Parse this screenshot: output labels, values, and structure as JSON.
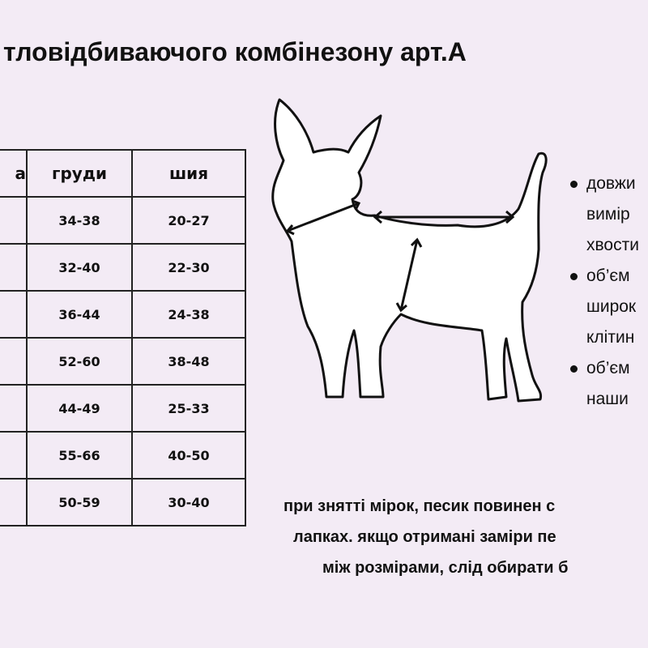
{
  "title": "тловідбиваючого комбінезону арт.А",
  "table": {
    "headers": [
      "а",
      "груди",
      "шия"
    ],
    "rows": [
      [
        "",
        "34-38",
        "20-27"
      ],
      [
        "",
        "32-40",
        "22-30"
      ],
      [
        "",
        "36-44",
        "24-38"
      ],
      [
        "",
        "52-60",
        "38-48"
      ],
      [
        "",
        "44-49",
        "25-33"
      ],
      [
        "",
        "55-66",
        "40-50"
      ],
      [
        "",
        "50-59",
        "30-40"
      ]
    ]
  },
  "bullets": [
    {
      "lines": [
        "довжи",
        "вимір",
        "хвости"
      ]
    },
    {
      "lines": [
        "об’єм",
        "широк",
        "клітин"
      ]
    },
    {
      "lines": [
        "об’єм",
        "наши"
      ]
    }
  ],
  "note": {
    "lines": [
      "при знятті мірок, песик повинен с",
      "лапках. якщо отримані заміри пе",
      "між розмірами, слід обирати б"
    ]
  },
  "colors": {
    "background": "#f3ebf5",
    "text": "#111111"
  }
}
